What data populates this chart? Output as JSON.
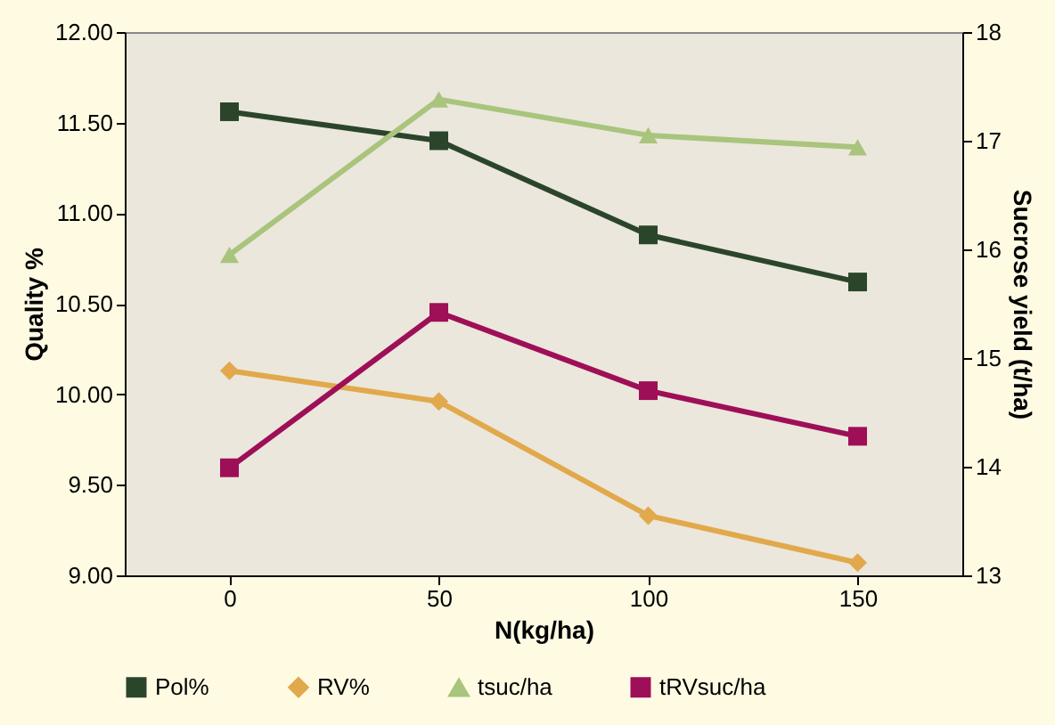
{
  "chart_data": {
    "type": "line",
    "xlabel": "N(kg/ha)",
    "ylabel": "Quality %",
    "y2label": "Sucrose yield (t/ha)",
    "categories": [
      "0",
      "50",
      "100",
      "150"
    ],
    "ylim": [
      9,
      12
    ],
    "yticks": [
      {
        "value": 9,
        "label": "9.00"
      },
      {
        "value": 9.5,
        "label": "9.50"
      },
      {
        "value": 10,
        "label": "10.00"
      },
      {
        "value": 10.5,
        "label": "10.50"
      },
      {
        "value": 11,
        "label": "11.00"
      },
      {
        "value": 11.5,
        "label": "11.50"
      },
      {
        "value": 12,
        "label": "12.00"
      }
    ],
    "y2lim": [
      13,
      18
    ],
    "y2ticks": [
      13,
      14,
      15,
      16,
      17,
      18
    ],
    "series": [
      {
        "name": "Pol%",
        "color": "#2b452b",
        "marker": "square",
        "values": [
          11.56,
          11.4,
          10.88,
          10.62
        ]
      },
      {
        "name": "RV%",
        "color": "#e1a94c",
        "marker": "diamond",
        "values": [
          10.13,
          9.96,
          9.33,
          9.07
        ]
      },
      {
        "name": "tsuc/ha",
        "color": "#a9c47c",
        "marker": "triangle",
        "axis": "y2",
        "values": [
          15.95,
          17.38,
          17.05,
          16.94
        ]
      },
      {
        "name": "tRVsuc/ha",
        "color": "#9e0f58",
        "marker": "square",
        "axis": "y2",
        "values": [
          13.99,
          15.42,
          14.7,
          14.28
        ]
      }
    ],
    "legend": "bottom",
    "grid": false
  }
}
